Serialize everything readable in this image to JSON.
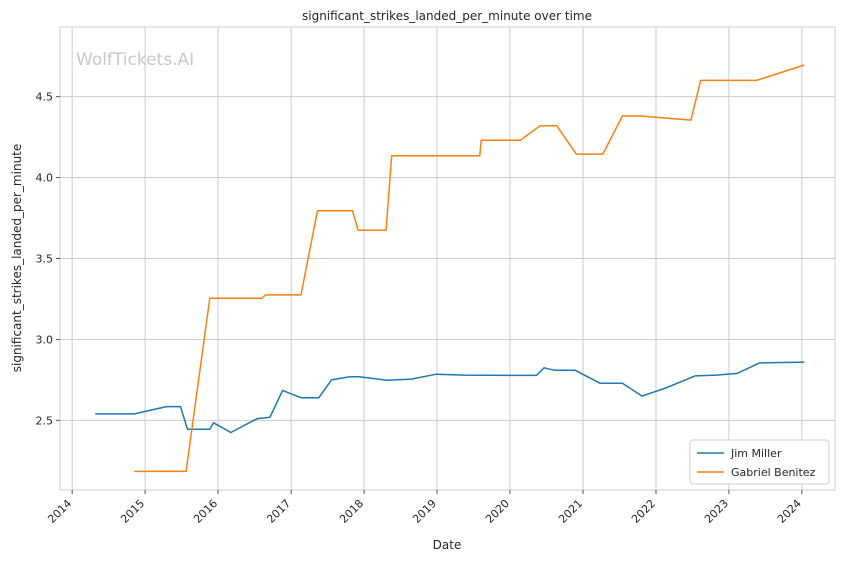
{
  "chart_data": {
    "type": "line",
    "title": "significant_strikes_landed_per_minute over time",
    "xlabel": "Date",
    "ylabel": "significant_strikes_landed_per_minute",
    "watermark": "WolfTickets.AI",
    "x_ticks": [
      "2014",
      "2015",
      "2016",
      "2017",
      "2018",
      "2019",
      "2020",
      "2021",
      "2022",
      "2023",
      "2024"
    ],
    "y_ticks": [
      "2.5",
      "3.0",
      "3.5",
      "4.0",
      "4.5"
    ],
    "xlim": [
      "2013-11-01",
      "2024-06-15"
    ],
    "ylim": [
      2.07,
      4.93
    ],
    "grid": true,
    "legend_position": "bottom-right",
    "series": [
      {
        "name": "Jim Miller",
        "color": "#1f77b4",
        "points": [
          [
            "2014-04-26",
            2.54
          ],
          [
            "2014-10-04",
            2.54
          ],
          [
            "2014-11-08",
            2.54
          ],
          [
            "2015-04-18",
            2.585
          ],
          [
            "2015-06-27",
            2.585
          ],
          [
            "2015-08-01",
            2.445
          ],
          [
            "2015-11-21",
            2.445
          ],
          [
            "2015-12-10",
            2.485
          ],
          [
            "2016-03-05",
            2.425
          ],
          [
            "2016-07-13",
            2.51
          ],
          [
            "2016-09-17",
            2.52
          ],
          [
            "2016-11-19",
            2.685
          ],
          [
            "2017-02-19",
            2.64
          ],
          [
            "2017-05-20",
            2.64
          ],
          [
            "2017-07-22",
            2.75
          ],
          [
            "2017-10-21",
            2.77
          ],
          [
            "2017-12-09",
            2.77
          ],
          [
            "2018-04-21",
            2.748
          ],
          [
            "2018-08-25",
            2.755
          ],
          [
            "2018-12-29",
            2.785
          ],
          [
            "2019-05-18",
            2.78
          ],
          [
            "2020-01-18",
            2.778
          ],
          [
            "2020-05-13",
            2.778
          ],
          [
            "2020-06-20",
            2.825
          ],
          [
            "2020-08-08",
            2.81
          ],
          [
            "2020-11-21",
            2.81
          ],
          [
            "2021-03-27",
            2.73
          ],
          [
            "2021-07-17",
            2.73
          ],
          [
            "2021-10-23",
            2.65
          ],
          [
            "2022-02-19",
            2.7
          ],
          [
            "2022-07-16",
            2.775
          ],
          [
            "2022-10-29",
            2.78
          ],
          [
            "2023-02-11",
            2.79
          ],
          [
            "2023-06-03",
            2.855
          ],
          [
            "2024-01-13",
            2.86
          ]
        ]
      },
      {
        "name": "Gabriel Benitez",
        "color": "#ff7f0e",
        "points": [
          [
            "2014-11-08",
            2.185
          ],
          [
            "2015-07-25",
            2.185
          ],
          [
            "2015-11-21",
            3.255
          ],
          [
            "2016-08-06",
            3.255
          ],
          [
            "2016-08-27",
            3.275
          ],
          [
            "2017-02-19",
            3.275
          ],
          [
            "2017-05-13",
            3.795
          ],
          [
            "2017-11-04",
            3.795
          ],
          [
            "2017-12-02",
            3.675
          ],
          [
            "2018-04-21",
            3.675
          ],
          [
            "2018-05-19",
            4.135
          ],
          [
            "2019-08-03",
            4.135
          ],
          [
            "2019-08-10",
            4.23
          ],
          [
            "2020-02-22",
            4.23
          ],
          [
            "2020-05-30",
            4.32
          ],
          [
            "2020-08-22",
            4.32
          ],
          [
            "2020-11-28",
            4.145
          ],
          [
            "2021-04-10",
            4.145
          ],
          [
            "2021-07-17",
            4.38
          ],
          [
            "2021-10-16",
            4.38
          ],
          [
            "2022-06-25",
            4.355
          ],
          [
            "2022-08-13",
            4.6
          ],
          [
            "2023-05-20",
            4.6
          ],
          [
            "2024-01-13",
            4.695
          ]
        ]
      }
    ]
  }
}
